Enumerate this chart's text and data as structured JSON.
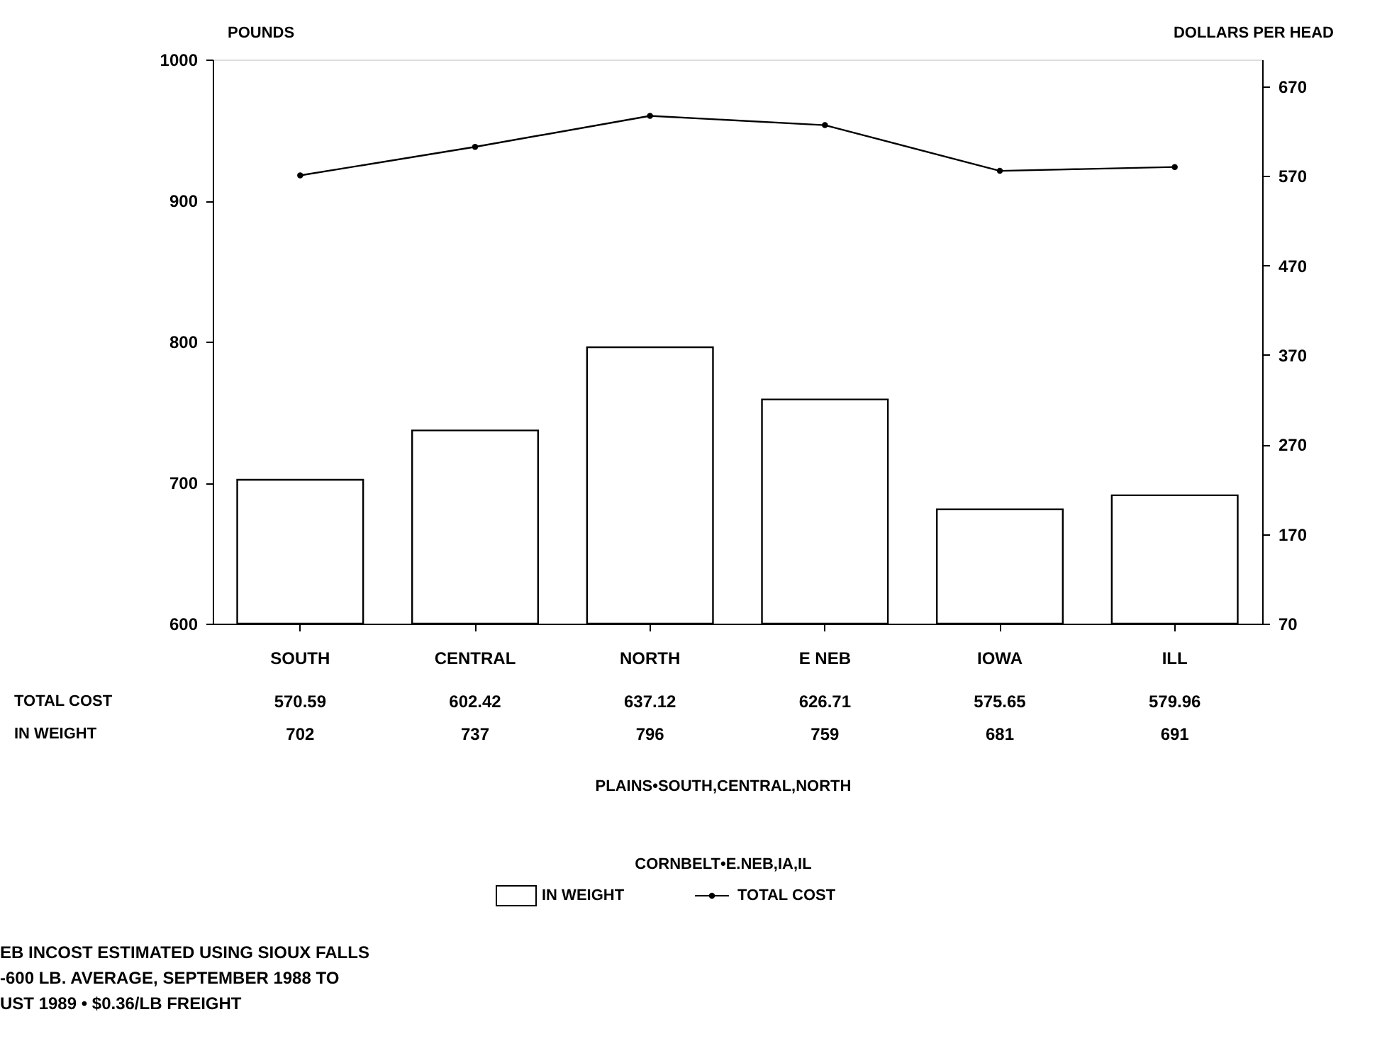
{
  "chart_data": {
    "type": "bar",
    "categories": [
      "SOUTH",
      "CENTRAL",
      "NORTH",
      "E NEB",
      "IOWA",
      "ILL"
    ],
    "series": [
      {
        "name": "TOTAL COST",
        "type": "line",
        "axis": "y2",
        "color": "#000000",
        "values": [
          570.59,
          602.42,
          637.12,
          626.71,
          575.65,
          579.96
        ]
      },
      {
        "name": "IN WEIGHT",
        "color": "#ffffff",
        "values": [
          702,
          737,
          796,
          759,
          681,
          691
        ]
      }
    ],
    "ylabel": "POUNDS",
    "y2label": "DOLLARS PER HEAD",
    "ylim": [
      600,
      1000
    ],
    "yticks": [
      600,
      700,
      800,
      900,
      1000
    ],
    "y2lim": [
      70,
      700
    ],
    "y2ticks": [
      70,
      170,
      270,
      370,
      470,
      570,
      670
    ],
    "data_labels": true,
    "marker": "circle",
    "legend": "bottom",
    "grid": false,
    "annotations": [
      "PLAINS•SOUTH,CENTRAL,NORTH",
      "CORNBELT•E.NEB,IA,IL",
      "EB INCOST ESTIMATED USING SIOUX FALLS",
      "-600 LB. AVERAGE, SEPTEMBER 1988 TO",
      "UST 1989 • $0.36/LB FREIGHT"
    ]
  }
}
